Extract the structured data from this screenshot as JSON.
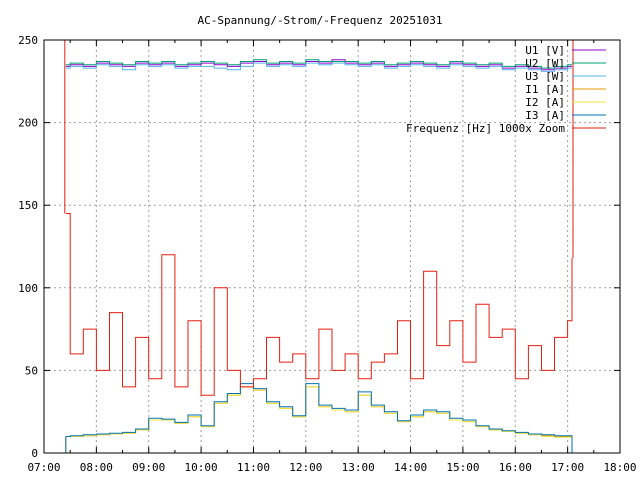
{
  "chart_data": {
    "type": "line",
    "title": "AC-Spannung/-Strom/-Frequenz 20251031",
    "xlabel": "",
    "ylabel": "",
    "xlim": [
      "07:00",
      "18:00"
    ],
    "ylim": [
      0,
      250
    ],
    "grid": true,
    "legend_position": "top-right",
    "x_ticks": [
      "07:00",
      "08:00",
      "09:00",
      "10:00",
      "11:00",
      "12:00",
      "13:00",
      "14:00",
      "15:00",
      "16:00",
      "17:00",
      "18:00"
    ],
    "y_ticks": [
      0,
      50,
      100,
      150,
      200,
      250
    ],
    "x": [
      "07:25",
      "07:30",
      "07:45",
      "08:00",
      "08:15",
      "08:30",
      "08:45",
      "09:00",
      "09:15",
      "09:30",
      "09:45",
      "10:00",
      "10:15",
      "10:30",
      "10:45",
      "11:00",
      "11:15",
      "11:30",
      "11:45",
      "12:00",
      "12:15",
      "12:30",
      "12:45",
      "13:00",
      "13:15",
      "13:30",
      "13:45",
      "14:00",
      "14:15",
      "14:30",
      "14:45",
      "15:00",
      "15:15",
      "15:30",
      "15:45",
      "16:00",
      "16:15",
      "16:30",
      "16:45",
      "17:00",
      "17:05"
    ],
    "series": [
      {
        "name": "U1 [V]",
        "color": "#9400d3",
        "values": [
          234,
          235,
          234,
          236,
          235,
          234,
          236,
          235,
          236,
          234,
          235,
          236,
          235,
          234,
          236,
          237,
          235,
          236,
          235,
          237,
          236,
          238,
          236,
          235,
          236,
          234,
          235,
          236,
          235,
          234,
          236,
          235,
          234,
          235,
          233,
          234,
          233,
          232,
          233,
          234,
          234
        ]
      },
      {
        "name": "U2 [W]",
        "color": "#009e73",
        "values": [
          235,
          236,
          235,
          237,
          236,
          235,
          237,
          236,
          237,
          235,
          236,
          237,
          236,
          235,
          237,
          238,
          236,
          237,
          236,
          238,
          237,
          237,
          237,
          236,
          237,
          235,
          236,
          237,
          236,
          235,
          237,
          236,
          235,
          236,
          234,
          235,
          234,
          233,
          234,
          235,
          235
        ]
      },
      {
        "name": "U3 [W]",
        "color": "#56b4e9",
        "values": [
          233,
          234,
          233,
          235,
          234,
          232,
          235,
          234,
          235,
          233,
          234,
          234,
          233,
          232,
          234,
          236,
          234,
          235,
          234,
          236,
          235,
          236,
          235,
          234,
          235,
          233,
          234,
          235,
          234,
          233,
          235,
          234,
          233,
          234,
          232,
          233,
          232,
          231,
          232,
          233,
          233
        ]
      },
      {
        "name": "I1 [A]",
        "color": "#e69f00",
        "values": [
          10,
          10,
          10.5,
          11,
          11.5,
          12,
          14,
          20,
          20,
          18,
          22,
          16,
          30,
          35,
          40,
          38,
          30,
          27,
          22,
          40,
          28,
          26,
          25,
          35,
          28,
          24,
          19,
          22,
          25,
          24,
          20,
          19,
          16,
          14,
          13,
          12,
          11,
          10.5,
          10,
          10,
          10
        ]
      },
      {
        "name": "I2 [A]",
        "color": "#f0e442",
        "values": [
          10,
          10,
          10.5,
          11,
          11.5,
          12,
          14,
          20,
          20,
          18,
          22,
          16,
          30,
          35,
          40,
          38,
          30,
          27,
          22,
          40,
          28,
          26,
          25,
          35,
          28,
          24,
          19,
          22,
          25,
          24,
          20,
          19,
          16,
          14,
          13,
          12,
          11,
          10,
          9.5,
          9.5,
          9.5
        ]
      },
      {
        "name": "I3 [A]",
        "color": "#0072b2",
        "values": [
          10,
          10.5,
          11,
          11.5,
          12,
          12.5,
          14.5,
          21,
          20.5,
          18.5,
          23,
          16.5,
          31,
          36,
          42,
          39,
          31,
          28,
          22.5,
          42,
          29,
          27,
          26,
          37,
          29,
          25,
          19.5,
          23,
          26,
          25,
          21,
          20,
          16.5,
          14.5,
          13.5,
          12.5,
          11.5,
          11,
          10.5,
          10.5,
          10.5
        ]
      },
      {
        "name": "Frequenz [Hz] 1000x Zoom",
        "color": "#e51e10",
        "values": [
          145,
          60,
          75,
          50,
          85,
          40,
          70,
          45,
          120,
          40,
          80,
          35,
          100,
          50,
          40,
          45,
          70,
          55,
          60,
          45,
          75,
          50,
          60,
          45,
          55,
          60,
          80,
          45,
          110,
          65,
          80,
          55,
          90,
          70,
          75,
          45,
          65,
          50,
          70,
          80,
          118
        ]
      }
    ]
  }
}
